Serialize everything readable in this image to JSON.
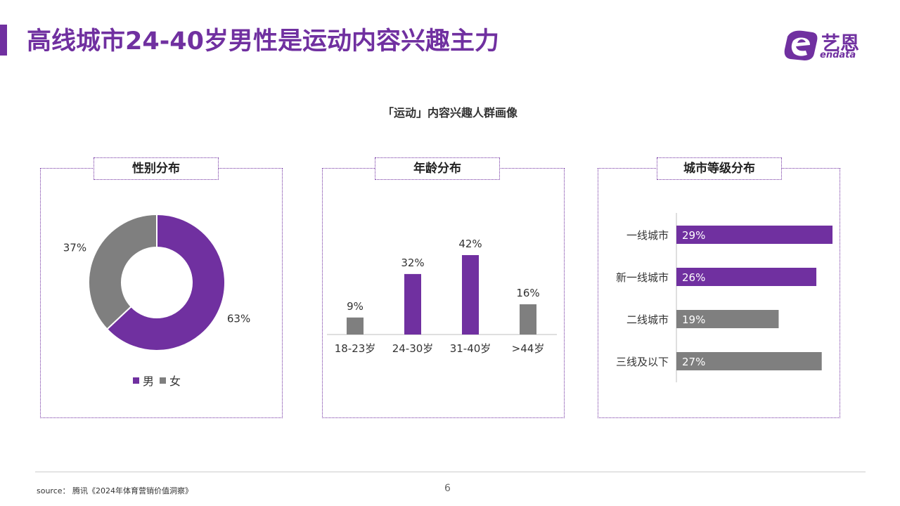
{
  "page": {
    "title": "高线城市24-40岁男性是运动内容兴趣主力",
    "subtitle": "「运动」内容兴趣人群画像",
    "logo_cn": "艺恩",
    "logo_en": "endata",
    "source": "source： 腾讯《2024年体育营销价值洞察》",
    "page_number": "6"
  },
  "colors": {
    "purple": "#7030a0",
    "gray": "#7f7f7f"
  },
  "chart_data": [
    {
      "type": "pie",
      "title": "性别分布",
      "categories": [
        "男",
        "女"
      ],
      "values": [
        63,
        37
      ],
      "labels": [
        "63%",
        "37%"
      ],
      "colors": [
        "#7030a0",
        "#7f7f7f"
      ],
      "donut": true,
      "legend": "bottom"
    },
    {
      "type": "bar",
      "title": "年龄分布",
      "categories": [
        "18-23岁",
        "24-30岁",
        "31-40岁",
        ">44岁"
      ],
      "values": [
        9,
        32,
        42,
        16
      ],
      "labels": [
        "9%",
        "32%",
        "42%",
        "16%"
      ],
      "colors": [
        "#7f7f7f",
        "#7030a0",
        "#7030a0",
        "#7f7f7f"
      ],
      "ylim": [
        0,
        42
      ]
    },
    {
      "type": "bar",
      "orientation": "horizontal",
      "title": "城市等级分布",
      "categories": [
        "一线城市",
        "新一线城市",
        "二线城市",
        "三线及以下"
      ],
      "values": [
        29,
        26,
        19,
        27
      ],
      "labels": [
        "29%",
        "26%",
        "19%",
        "27%"
      ],
      "colors": [
        "#7030a0",
        "#7030a0",
        "#7f7f7f",
        "#7f7f7f"
      ],
      "xlim": [
        0,
        29
      ]
    }
  ]
}
